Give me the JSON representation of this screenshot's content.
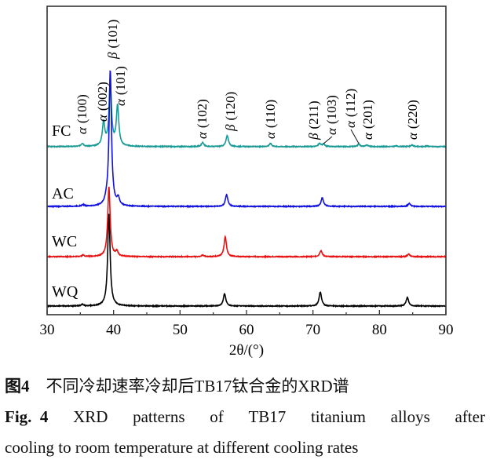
{
  "chart_data": {
    "type": "line",
    "title": "",
    "xlabel": "2θ/(°)",
    "ylabel": "",
    "xlim": [
      30,
      90
    ],
    "ylim": [
      0,
      100
    ],
    "xticks": [
      30,
      40,
      50,
      60,
      70,
      80,
      90
    ],
    "grid": false,
    "y_axis_ticks": false,
    "series": [
      {
        "name": "FC",
        "color": "#1a9a96",
        "baseline": 54.5,
        "peaks": [
          [
            35.3,
            1.0
          ],
          [
            38.5,
            7.6
          ],
          [
            39.5,
            20.4
          ],
          [
            40.6,
            13.0
          ],
          [
            53.4,
            1.3
          ],
          [
            57.1,
            3.6
          ],
          [
            63.6,
            1.0
          ],
          [
            71.0,
            1.0
          ],
          [
            71.6,
            0.8
          ],
          [
            76.9,
            0.8
          ],
          [
            78.1,
            0.5
          ],
          [
            82.5,
            0.2
          ],
          [
            84.9,
            0.5
          ],
          [
            87.2,
            0.2
          ]
        ]
      },
      {
        "name": "WQ",
        "color": "#000000",
        "baseline": 2.8,
        "peaks": [
          [
            35.3,
            0.5
          ],
          [
            39.3,
            30.0
          ],
          [
            56.7,
            4.0
          ],
          [
            71.1,
            4.6
          ],
          [
            84.2,
            2.8
          ]
        ]
      },
      {
        "name": "WC",
        "color": "#e81010",
        "baseline": 18.8,
        "peaks": [
          [
            35.4,
            0.5
          ],
          [
            39.3,
            22.5
          ],
          [
            40.5,
            1.5
          ],
          [
            53.4,
            0.5
          ],
          [
            56.8,
            6.4
          ],
          [
            71.2,
            2.0
          ],
          [
            84.4,
            0.8
          ]
        ]
      },
      {
        "name": "AC",
        "color": "#1010e0",
        "baseline": 35.1,
        "peaks": [
          [
            35.4,
            0.5
          ],
          [
            38.9,
            1.0
          ],
          [
            39.5,
            44.0
          ],
          [
            40.7,
            2.3
          ],
          [
            57.0,
            3.8
          ],
          [
            71.4,
            2.8
          ],
          [
            84.5,
            1.0
          ]
        ]
      }
    ],
    "annotations": [
      {
        "phase": "α",
        "hkl": "(100)",
        "x": 35.3
      },
      {
        "phase": "α",
        "hkl": "(002)",
        "x": 38.5
      },
      {
        "phase": "β",
        "hkl": "(101)",
        "x": 39.5
      },
      {
        "phase": "α",
        "hkl": "(101)",
        "x": 40.6
      },
      {
        "phase": "α",
        "hkl": "(102)",
        "x": 53.4
      },
      {
        "phase": "β",
        "hkl": "(120)",
        "x": 57.1
      },
      {
        "phase": "α",
        "hkl": "(110)",
        "x": 63.6
      },
      {
        "phase": "β",
        "hkl": "(211)",
        "x": 71.0
      },
      {
        "phase": "α",
        "hkl": "(103)",
        "x": 71.6,
        "arrow": true
      },
      {
        "phase": "α",
        "hkl": "(112)",
        "x": 76.9,
        "arrow": true
      },
      {
        "phase": "α",
        "hkl": "(201)",
        "x": 78.1
      },
      {
        "phase": "α",
        "hkl": "(220)",
        "x": 84.9
      }
    ]
  },
  "caption": {
    "cn_label": "图4",
    "cn_text": "不同冷却速率冷却后TB17钛合金的XRD谱",
    "en_label": "Fig.  4",
    "en_words": [
      "XRD",
      "patterns",
      "of",
      "TB17",
      "titanium",
      "alloys",
      "after"
    ],
    "en_line2": "cooling to room temperature at different cooling rates"
  }
}
